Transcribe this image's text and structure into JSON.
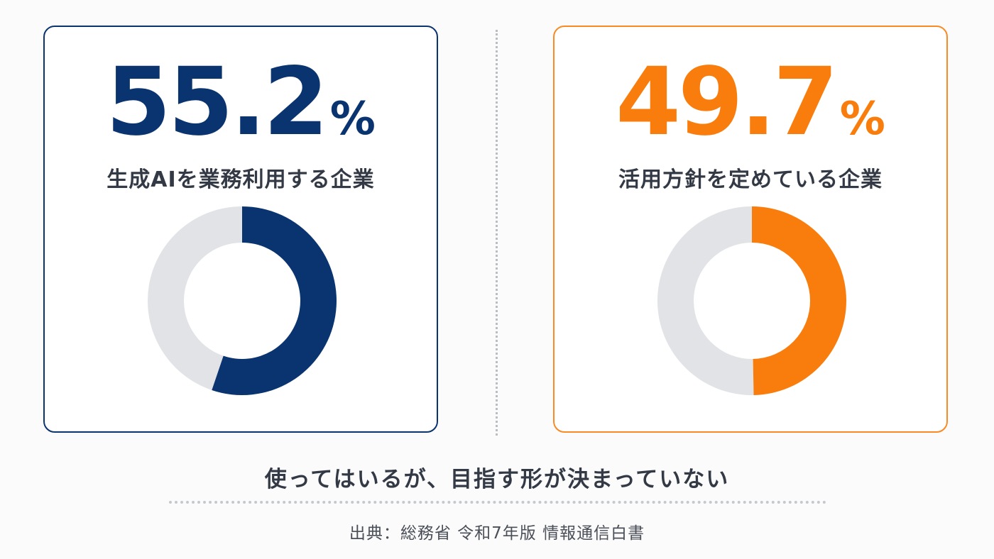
{
  "chart_data": [
    {
      "type": "pie",
      "value": 55.2,
      "value_text": "55.2",
      "unit": "%",
      "label": "生成AIを業務利用する企業",
      "color": "#0a3470",
      "remainder_color": "#e2e3e7"
    },
    {
      "type": "pie",
      "value": 49.7,
      "value_text": "49.7",
      "unit": "%",
      "label": "活用方針を定めている企業",
      "color": "#f97d0c",
      "remainder_color": "#e2e3e7"
    }
  ],
  "message": "使ってはいるが、目指す形が決まっていない",
  "source": "出典：総務省 令和7年版 情報通信白書"
}
